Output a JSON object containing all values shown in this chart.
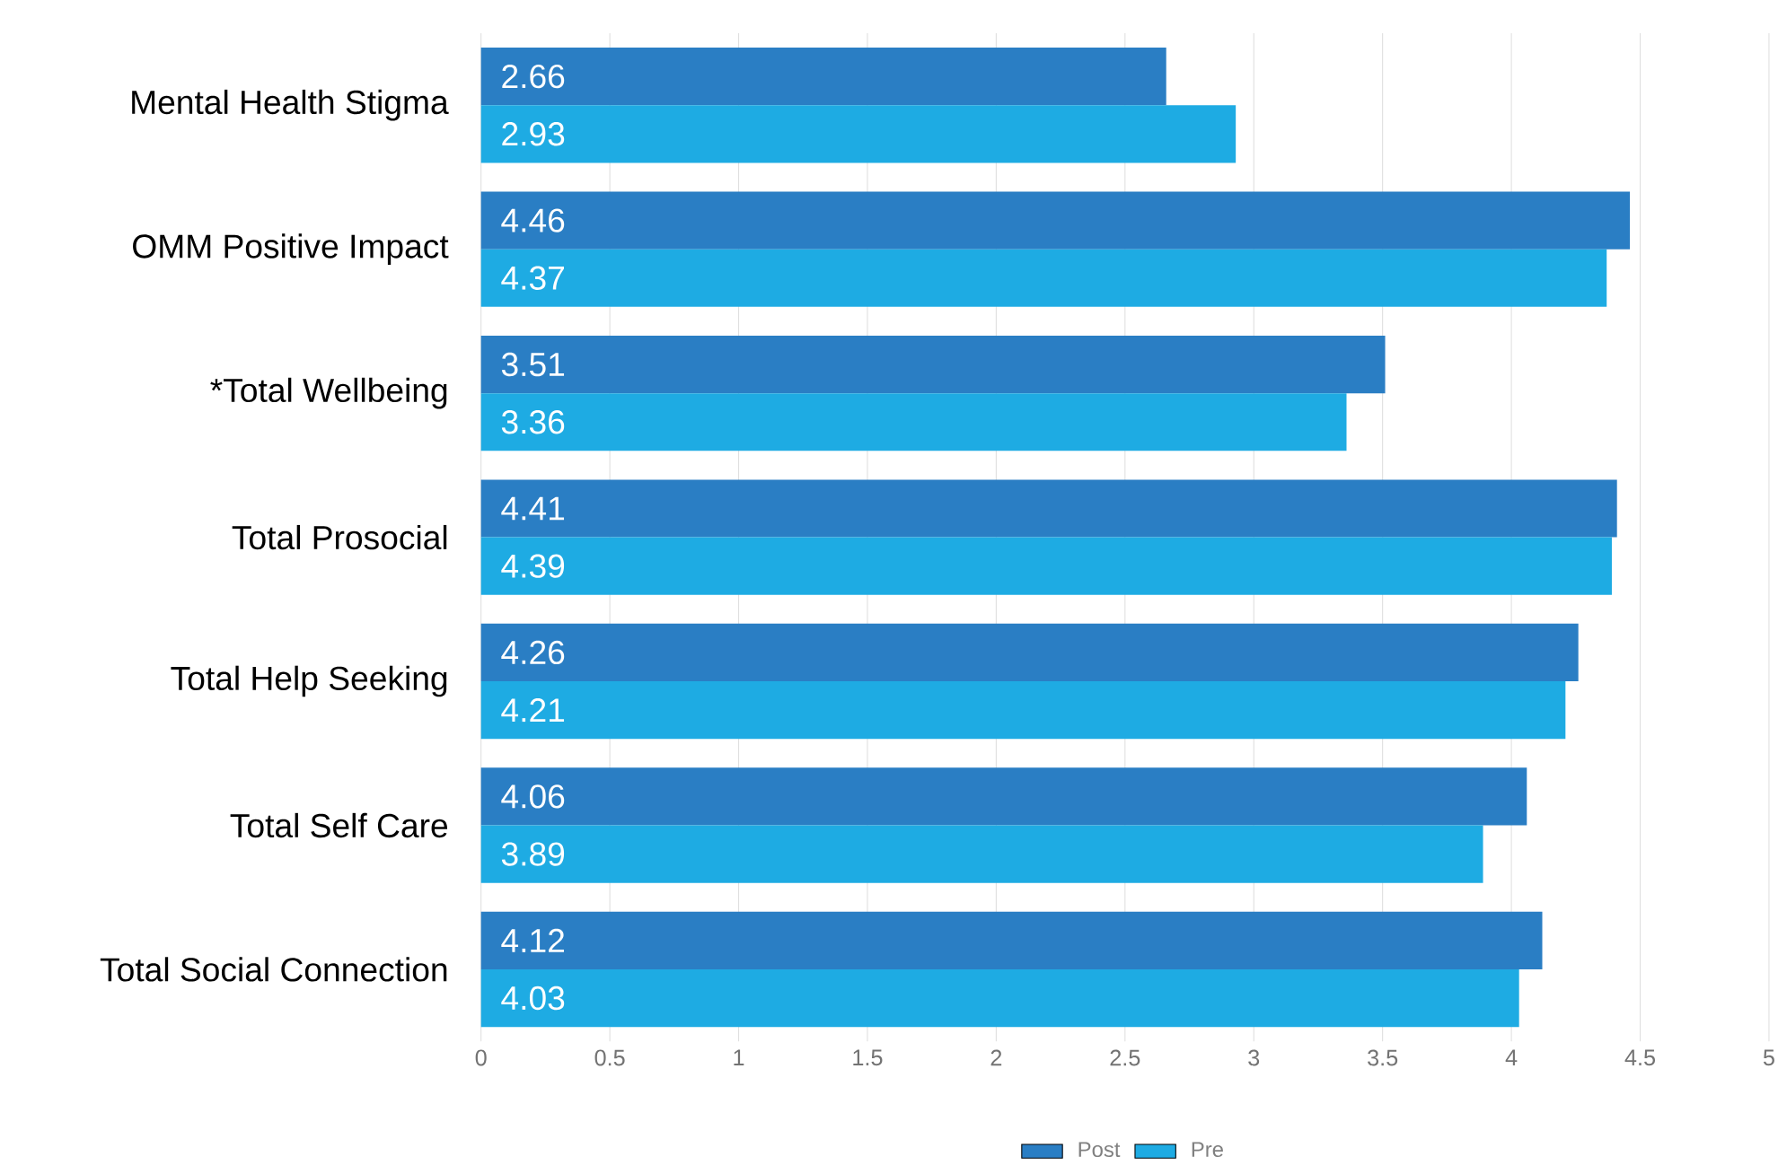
{
  "chart_data": {
    "type": "bar",
    "orientation": "horizontal",
    "categories": [
      "Mental Health Stigma",
      "OMM Positive Impact",
      "*Total Wellbeing",
      "Total Prosocial",
      "Total Help Seeking",
      "Total Self Care",
      "Total Social Connection"
    ],
    "series": [
      {
        "name": "Post",
        "color": "#2a7ec4",
        "values": [
          2.66,
          4.46,
          3.51,
          4.41,
          4.26,
          4.06,
          4.12
        ]
      },
      {
        "name": "Pre",
        "color": "#1eabe3",
        "values": [
          2.93,
          4.37,
          3.36,
          4.39,
          4.21,
          3.89,
          4.03
        ]
      }
    ],
    "xlim": [
      0,
      5
    ],
    "xticks": [
      0,
      0.5,
      1,
      1.5,
      2,
      2.5,
      3,
      3.5,
      4,
      4.5,
      5
    ],
    "grid": "x",
    "legend": "bottom",
    "data_labels": true
  }
}
